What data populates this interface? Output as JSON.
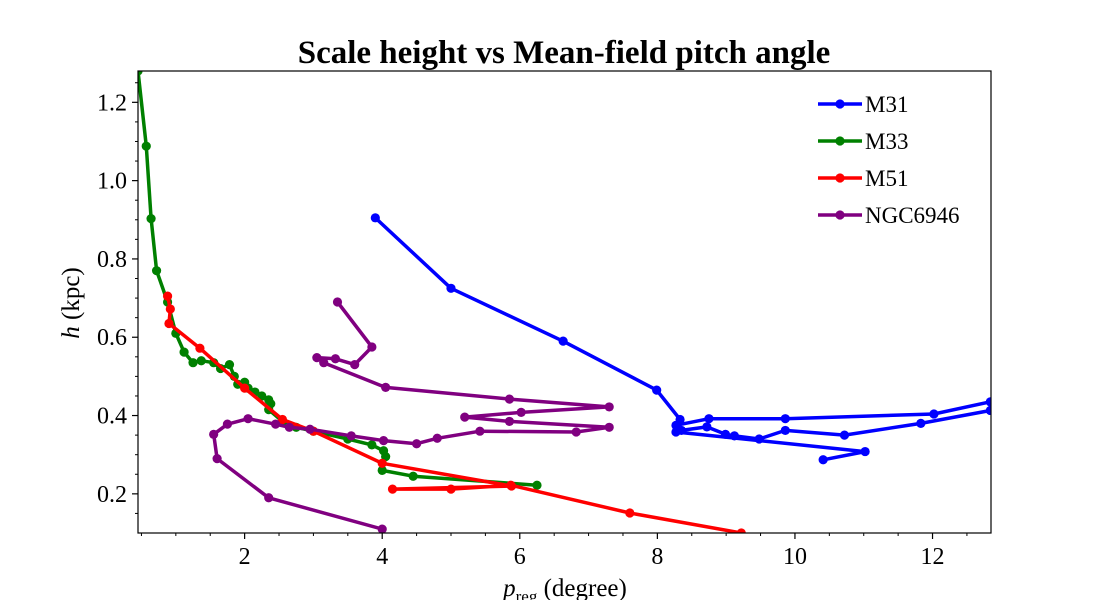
{
  "chart_data": {
    "type": "line",
    "title": "Scale height vs Mean-field pitch angle",
    "xlabel_main": "p",
    "xlabel_sub": "reg",
    "xlabel_rest": " (degree)",
    "ylabel_main": "h",
    "ylabel_rest": " (kpc)",
    "xlim": [
      0.45,
      12.85
    ],
    "ylim": [
      0.1,
      1.28
    ],
    "xticks": [
      2,
      4,
      6,
      8,
      10,
      12
    ],
    "yticks": [
      0.2,
      0.4,
      0.6,
      0.8,
      1.0,
      1.2
    ],
    "xtick_labels": [
      "2",
      "4",
      "6",
      "8",
      "10",
      "12"
    ],
    "ytick_labels": [
      "0.2",
      "0.4",
      "0.6",
      "0.8",
      "1.0",
      "1.2"
    ],
    "grid": false,
    "legend_position": "top-right",
    "series": [
      {
        "name": "M31",
        "color": "#0000ff",
        "x": [
          3.9,
          5.0,
          6.63,
          7.99,
          8.33,
          8.27,
          8.75,
          9.86,
          12.02,
          12.84,
          12.84,
          11.83,
          10.72,
          9.86,
          9.48,
          9.12,
          8.99,
          8.72,
          8.35,
          8.27,
          11.02,
          10.41
        ],
        "y": [
          0.905,
          0.725,
          0.59,
          0.465,
          0.39,
          0.375,
          0.392,
          0.392,
          0.404,
          0.435,
          0.413,
          0.38,
          0.35,
          0.362,
          0.34,
          0.348,
          0.352,
          0.371,
          0.362,
          0.358,
          0.308,
          0.287
        ]
      },
      {
        "name": "M33",
        "color": "#008000",
        "x": [
          0.45,
          0.57,
          0.64,
          0.72,
          0.88,
          1.0,
          1.12,
          1.25,
          1.37,
          1.55,
          1.65,
          1.78,
          1.85,
          1.9,
          2.0,
          2.05,
          2.15,
          2.25,
          2.35,
          2.38,
          2.35,
          2.55,
          2.75,
          3.0,
          3.5,
          3.85,
          4.02,
          4.05,
          4.0,
          4.45,
          6.25
        ],
        "y": [
          1.28,
          1.088,
          0.903,
          0.77,
          0.69,
          0.61,
          0.562,
          0.535,
          0.54,
          0.535,
          0.52,
          0.53,
          0.5,
          0.48,
          0.485,
          0.47,
          0.46,
          0.45,
          0.44,
          0.43,
          0.415,
          0.385,
          0.37,
          0.36,
          0.34,
          0.325,
          0.31,
          0.295,
          0.26,
          0.245,
          0.222
        ]
      },
      {
        "name": "M51",
        "color": "#ff0000",
        "x": [
          0.88,
          0.92,
          0.9,
          1.35,
          2.0,
          2.55,
          3.0,
          4.0,
          5.88,
          4.15,
          5.0,
          5.87,
          7.6,
          9.22
        ],
        "y": [
          0.705,
          0.672,
          0.635,
          0.572,
          0.47,
          0.39,
          0.36,
          0.278,
          0.22,
          0.212,
          0.212,
          0.222,
          0.151,
          0.1
        ]
      },
      {
        "name": "NGC6946",
        "color": "#800080",
        "x": [
          3.35,
          3.85,
          3.6,
          3.32,
          3.05,
          3.15,
          4.05,
          5.85,
          7.3,
          6.02,
          5.2,
          5.85,
          7.3,
          6.82,
          5.42,
          4.8,
          4.5,
          4.02,
          3.55,
          2.95,
          2.65,
          2.45,
          2.05,
          1.75,
          1.55,
          1.6,
          2.35,
          4.0
        ],
        "y": [
          0.69,
          0.575,
          0.53,
          0.545,
          0.548,
          0.535,
          0.472,
          0.442,
          0.422,
          0.408,
          0.396,
          0.385,
          0.37,
          0.358,
          0.36,
          0.342,
          0.328,
          0.336,
          0.348,
          0.365,
          0.37,
          0.378,
          0.392,
          0.378,
          0.352,
          0.29,
          0.19,
          0.11
        ]
      }
    ]
  }
}
